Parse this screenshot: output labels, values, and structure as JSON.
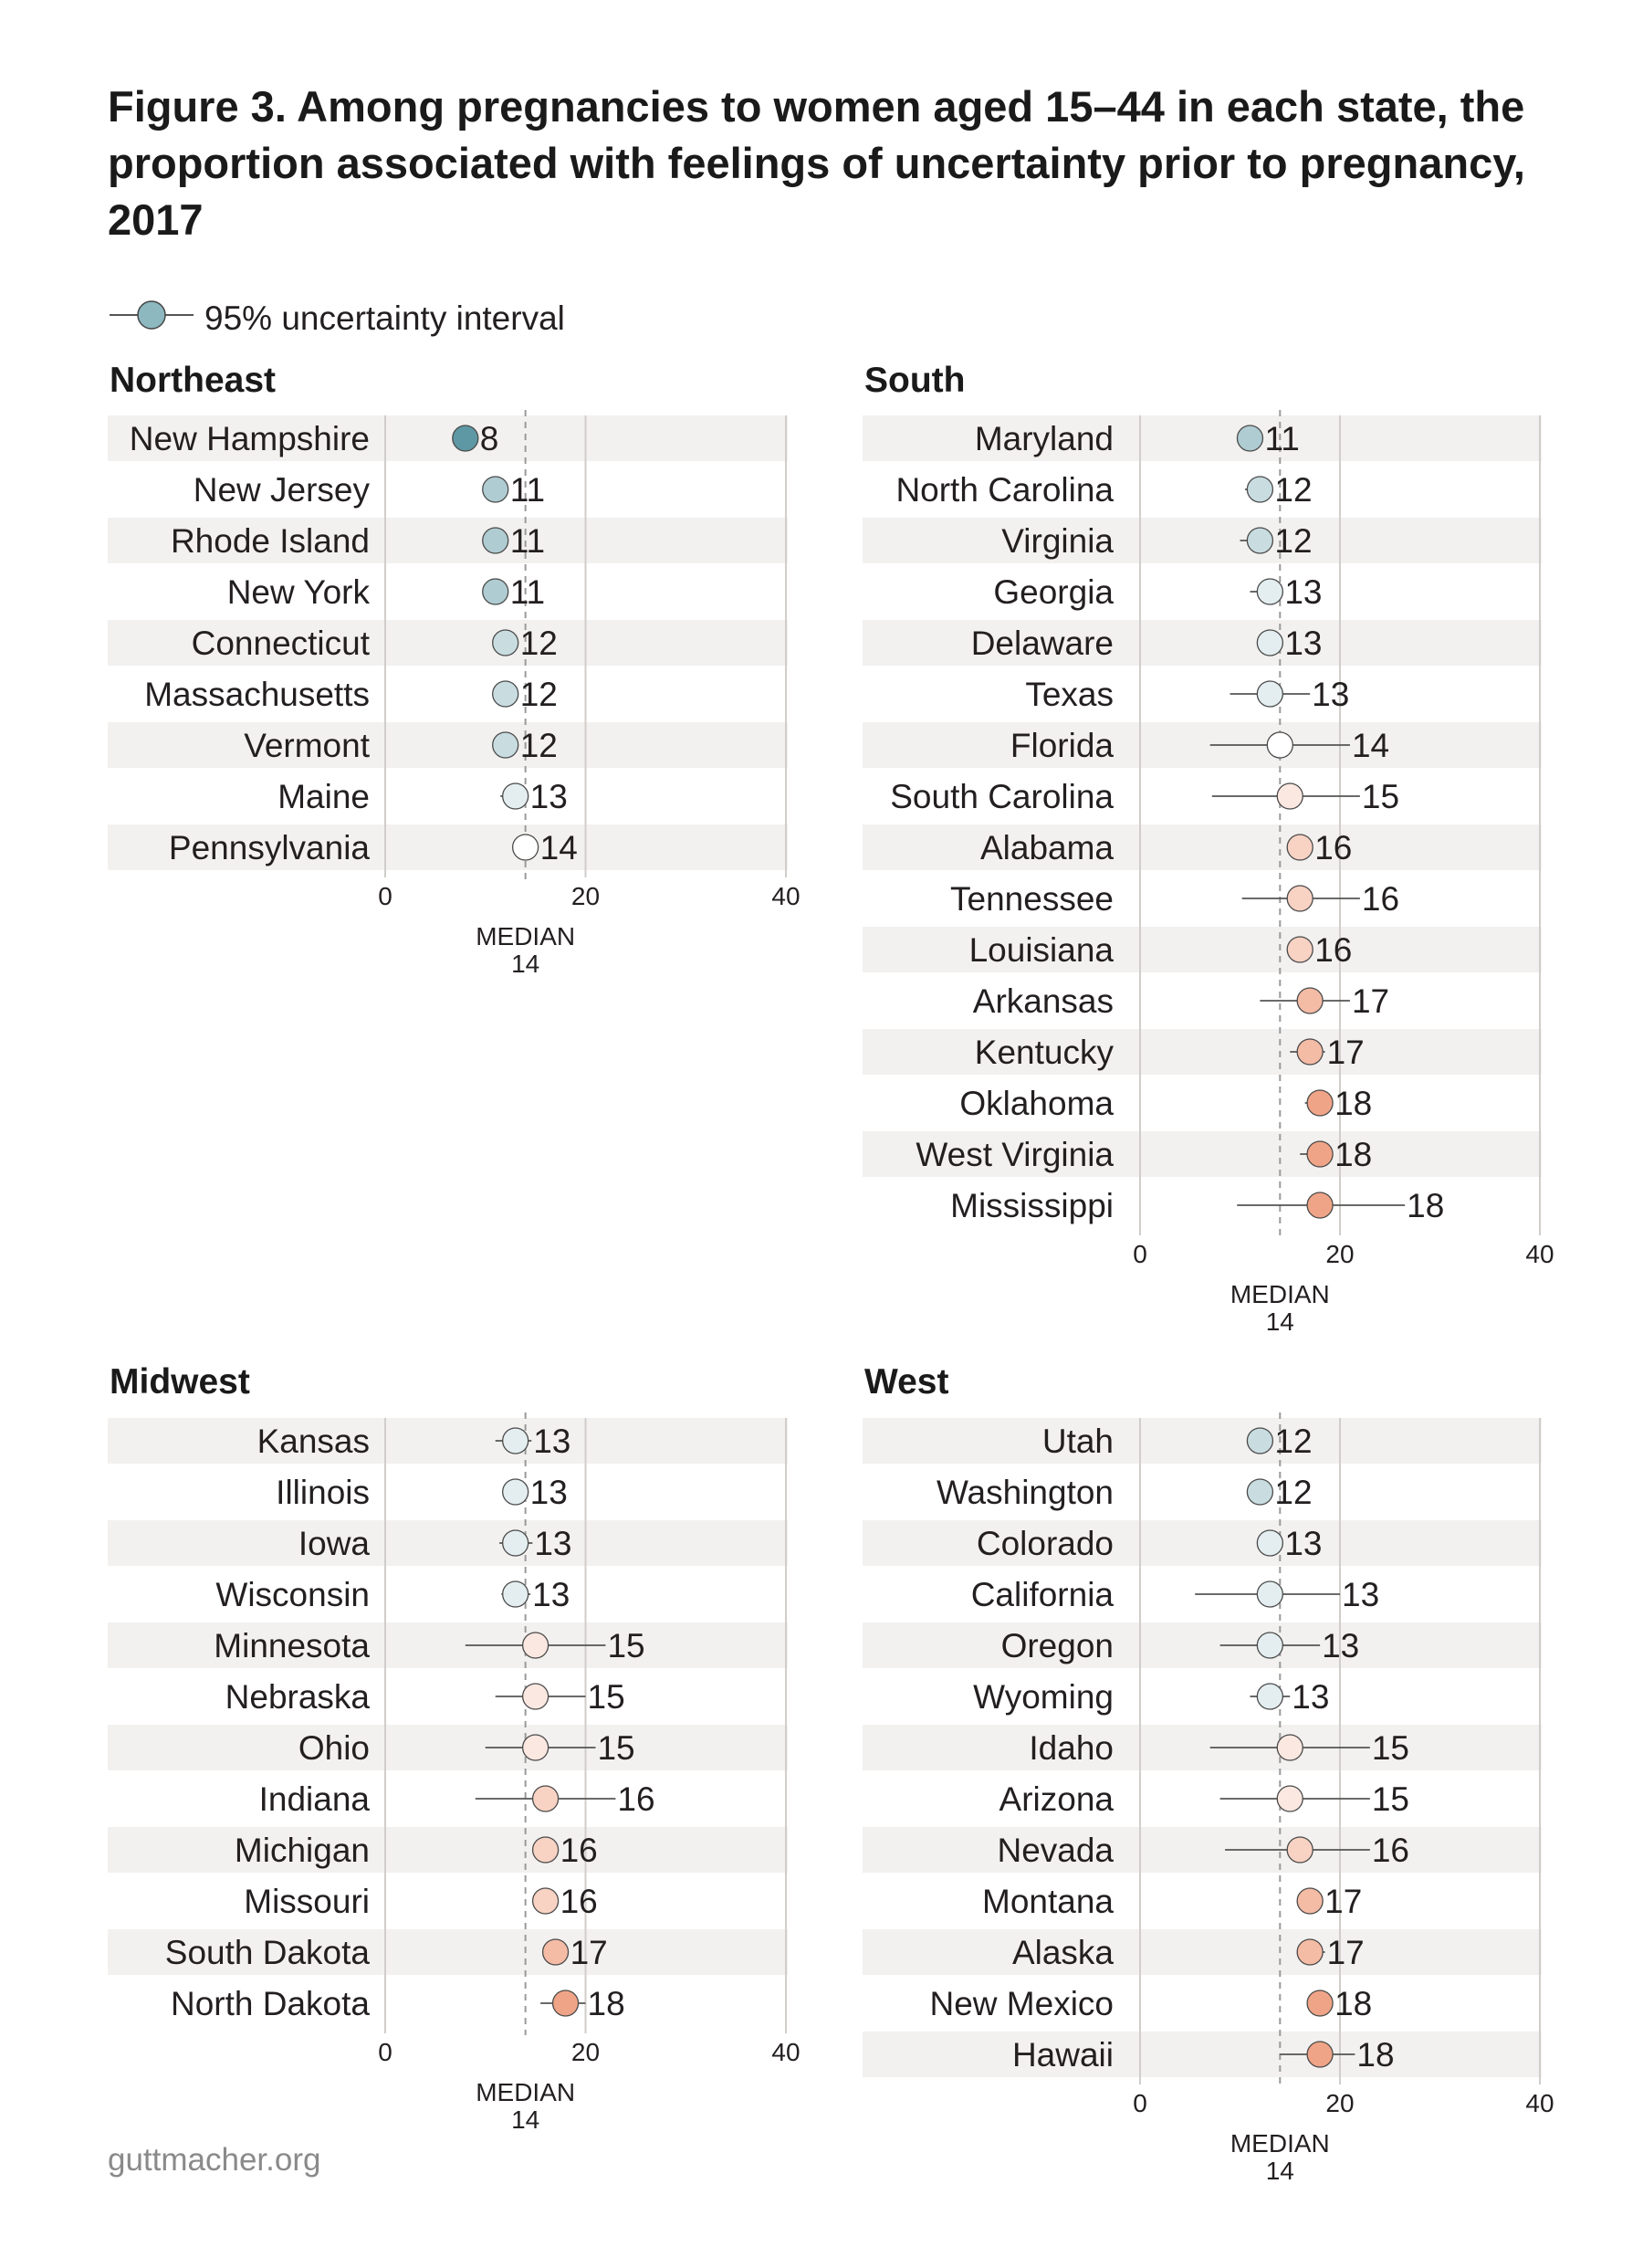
{
  "title": "Figure 3. Among pregnancies to women aged 15–44 in each state, the proportion associated with feelings of uncertainty prior to pregnancy, 2017",
  "legend": {
    "label": "95% uncertainty interval"
  },
  "footer": "guttmacher.org",
  "colors": {
    "row_shade": "#f3f1ef",
    "gridline": "#d0cdca",
    "median_line": "#9a9a9a",
    "interval_line": "#555555",
    "dot_scale_low": "#5e98a4",
    "dot_scale_mid": "#ffffff",
    "dot_scale_high": "#f0a487"
  },
  "chart_data": [
    {
      "type": "dot-interval",
      "region": "Northeast",
      "xlim": [
        0,
        40
      ],
      "ticks": [
        "0",
        "20",
        "40"
      ],
      "median": {
        "label": "MEDIAN",
        "value": 14
      },
      "states": [
        {
          "name": "New Hampshire",
          "value": 8,
          "low": 7,
          "high": 9
        },
        {
          "name": "New Jersey",
          "value": 11,
          "low": 10.3,
          "high": 11.7
        },
        {
          "name": "Rhode Island",
          "value": 11,
          "low": 10.5,
          "high": 11.5
        },
        {
          "name": "New York",
          "value": 11,
          "low": 10.4,
          "high": 11.6
        },
        {
          "name": "Connecticut",
          "value": 12,
          "low": 11.4,
          "high": 12.6
        },
        {
          "name": "Massachusetts",
          "value": 12,
          "low": 11.5,
          "high": 12.5
        },
        {
          "name": "Vermont",
          "value": 12,
          "low": 11.4,
          "high": 12.6
        },
        {
          "name": "Maine",
          "value": 13,
          "low": 11.5,
          "high": 14
        },
        {
          "name": "Pennsylvania",
          "value": 14,
          "low": 13.4,
          "high": 14.6
        }
      ]
    },
    {
      "type": "dot-interval",
      "region": "South",
      "xlim": [
        0,
        40
      ],
      "ticks": [
        "0",
        "20",
        "40"
      ],
      "median": {
        "label": "MEDIAN",
        "value": 14
      },
      "states": [
        {
          "name": "Maryland",
          "value": 11,
          "low": 10.5,
          "high": 11.5
        },
        {
          "name": "North Carolina",
          "value": 12,
          "low": 10.5,
          "high": 13
        },
        {
          "name": "Virginia",
          "value": 12,
          "low": 10,
          "high": 13
        },
        {
          "name": "Georgia",
          "value": 13,
          "low": 11,
          "high": 13.8
        },
        {
          "name": "Delaware",
          "value": 13,
          "low": 12.5,
          "high": 13.5
        },
        {
          "name": "Texas",
          "value": 13,
          "low": 9,
          "high": 17
        },
        {
          "name": "Florida",
          "value": 14,
          "low": 7,
          "high": 21
        },
        {
          "name": "South Carolina",
          "value": 15,
          "low": 7.2,
          "high": 22
        },
        {
          "name": "Alabama",
          "value": 16,
          "low": 15.6,
          "high": 16.4
        },
        {
          "name": "Tennessee",
          "value": 16,
          "low": 10.2,
          "high": 22
        },
        {
          "name": "Louisiana",
          "value": 16,
          "low": 15.6,
          "high": 16.4
        },
        {
          "name": "Arkansas",
          "value": 17,
          "low": 12,
          "high": 21
        },
        {
          "name": "Kentucky",
          "value": 17,
          "low": 15,
          "high": 18.5
        },
        {
          "name": "Oklahoma",
          "value": 18,
          "low": 16.5,
          "high": 18.6
        },
        {
          "name": "West Virginia",
          "value": 18,
          "low": 16,
          "high": 19
        },
        {
          "name": "Mississippi",
          "value": 18,
          "low": 9.7,
          "high": 26.5
        }
      ]
    },
    {
      "type": "dot-interval",
      "region": "Midwest",
      "xlim": [
        0,
        40
      ],
      "ticks": [
        "0",
        "20",
        "40"
      ],
      "median": {
        "label": "MEDIAN",
        "value": 14
      },
      "states": [
        {
          "name": "Kansas",
          "value": 13,
          "low": 11,
          "high": 14.6
        },
        {
          "name": "Illinois",
          "value": 13,
          "low": 12.5,
          "high": 13.5
        },
        {
          "name": "Iowa",
          "value": 13,
          "low": 11.4,
          "high": 14.7
        },
        {
          "name": "Wisconsin",
          "value": 13,
          "low": 11.6,
          "high": 14.5
        },
        {
          "name": "Minnesota",
          "value": 15,
          "low": 8,
          "high": 22
        },
        {
          "name": "Nebraska",
          "value": 15,
          "low": 11,
          "high": 20
        },
        {
          "name": "Ohio",
          "value": 15,
          "low": 10,
          "high": 21
        },
        {
          "name": "Indiana",
          "value": 16,
          "low": 9,
          "high": 23
        },
        {
          "name": "Michigan",
          "value": 16,
          "low": 15.6,
          "high": 16.4
        },
        {
          "name": "Missouri",
          "value": 16,
          "low": 15,
          "high": 17
        },
        {
          "name": "South Dakota",
          "value": 17,
          "low": 16,
          "high": 18
        },
        {
          "name": "North Dakota",
          "value": 18,
          "low": 15.5,
          "high": 20
        }
      ]
    },
    {
      "type": "dot-interval",
      "region": "West",
      "xlim": [
        0,
        40
      ],
      "ticks": [
        "0",
        "20",
        "40"
      ],
      "median": {
        "label": "MEDIAN",
        "value": 14
      },
      "states": [
        {
          "name": "Utah",
          "value": 12,
          "low": 11.6,
          "high": 12.4
        },
        {
          "name": "Washington",
          "value": 12,
          "low": 11.6,
          "high": 12.4
        },
        {
          "name": "Colorado",
          "value": 13,
          "low": 12.6,
          "high": 13.4
        },
        {
          "name": "California",
          "value": 13,
          "low": 5.5,
          "high": 20
        },
        {
          "name": "Oregon",
          "value": 13,
          "low": 8,
          "high": 18
        },
        {
          "name": "Wyoming",
          "value": 13,
          "low": 11,
          "high": 15
        },
        {
          "name": "Idaho",
          "value": 15,
          "low": 7,
          "high": 23
        },
        {
          "name": "Arizona",
          "value": 15,
          "low": 8,
          "high": 23
        },
        {
          "name": "Nevada",
          "value": 16,
          "low": 8.5,
          "high": 23
        },
        {
          "name": "Montana",
          "value": 17,
          "low": 16.3,
          "high": 17.5
        },
        {
          "name": "Alaska",
          "value": 17,
          "low": 16,
          "high": 18.5
        },
        {
          "name": "New Mexico",
          "value": 18,
          "low": 17.5,
          "high": 18.5
        },
        {
          "name": "Hawaii",
          "value": 18,
          "low": 14,
          "high": 21.5
        }
      ]
    }
  ]
}
